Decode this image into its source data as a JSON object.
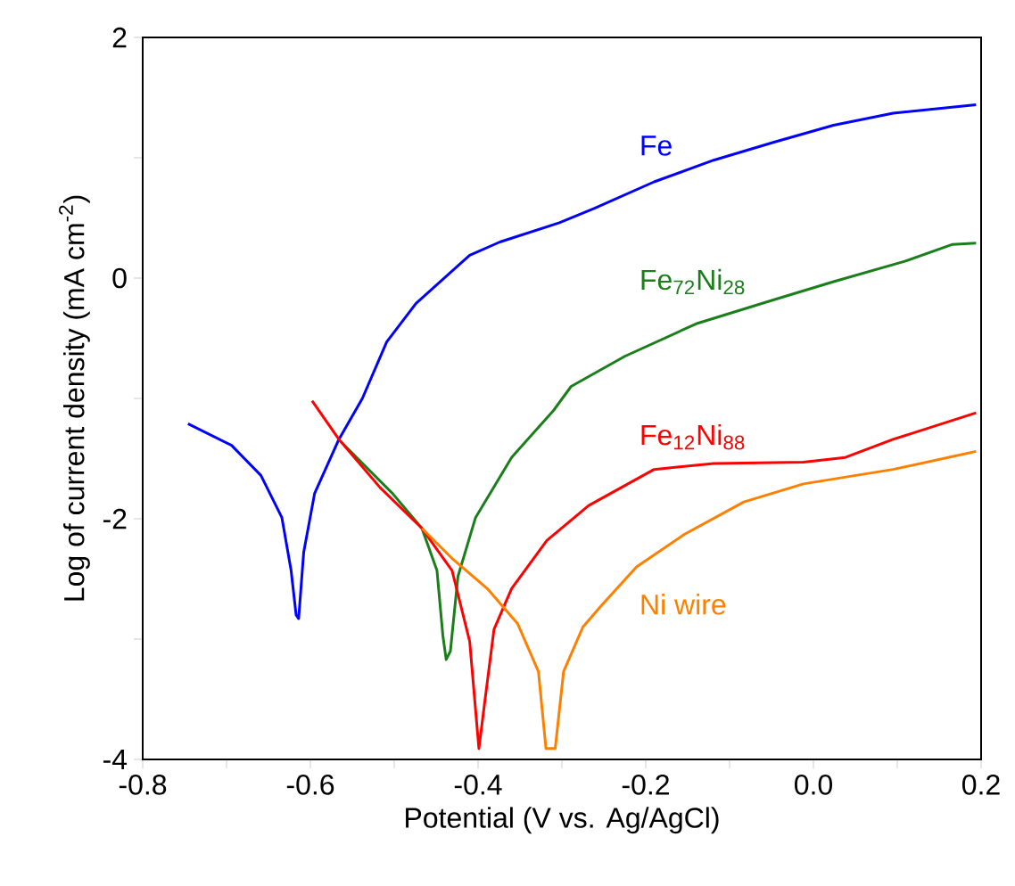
{
  "chart_data": {
    "type": "line",
    "xlabel": "Potential  (V vs. Ag/AgCl)",
    "ylabel": "Log of current density (mA cm$^{-2}$)",
    "xlim": [
      -0.8,
      0.2
    ],
    "ylim": [
      -4,
      2
    ],
    "xticks": [
      {
        "value": -0.8,
        "label": "-0.8"
      },
      {
        "value": -0.7,
        "label": null
      },
      {
        "value": -0.6,
        "label": "-0.6"
      },
      {
        "value": -0.5,
        "label": null
      },
      {
        "value": -0.4,
        "label": "-0.4"
      },
      {
        "value": -0.3,
        "label": null
      },
      {
        "value": -0.2,
        "label": "-0.2"
      },
      {
        "value": -0.1,
        "label": null
      },
      {
        "value": 0.0,
        "label": "0.0"
      },
      {
        "value": 0.1,
        "label": null
      },
      {
        "value": 0.2,
        "label": "0.2"
      }
    ],
    "yticks": [
      {
        "value": -4,
        "label": "-4"
      },
      {
        "value": -3,
        "label": null
      },
      {
        "value": -2,
        "label": "-2"
      },
      {
        "value": -1,
        "label": null
      },
      {
        "value": 0,
        "label": "0"
      },
      {
        "value": 1,
        "label": null
      },
      {
        "value": 2,
        "label": "2"
      }
    ],
    "grid": false,
    "legend": false,
    "marker": "none",
    "line_style": "solid",
    "series": [
      {
        "name": "Fe",
        "color": "#0000ff",
        "x": [
          -0.746,
          -0.694,
          -0.659,
          -0.634,
          -0.623,
          -0.617,
          -0.614,
          -0.608,
          -0.595,
          -0.566,
          -0.538,
          -0.509,
          -0.474,
          -0.41,
          -0.374,
          -0.303,
          -0.261,
          -0.19,
          -0.119,
          -0.047,
          0.024,
          0.095,
          0.194
        ],
        "values": [
          -1.21,
          -1.39,
          -1.64,
          -1.99,
          -2.43,
          -2.8,
          -2.83,
          -2.28,
          -1.79,
          -1.34,
          -1.0,
          -0.53,
          -0.21,
          0.19,
          0.3,
          0.46,
          0.58,
          0.8,
          0.98,
          1.13,
          1.27,
          1.37,
          1.44
        ]
      },
      {
        "name": "Fe$_{72}$Ni$_{28}$",
        "color": "#1a7f1a",
        "x": [
          -0.565,
          -0.502,
          -0.467,
          -0.449,
          -0.442,
          -0.438,
          -0.433,
          -0.424,
          -0.403,
          -0.36,
          -0.31,
          -0.289,
          -0.225,
          -0.14,
          -0.047,
          0.024,
          0.109,
          0.166,
          0.194
        ],
        "values": [
          -1.35,
          -1.79,
          -2.08,
          -2.43,
          -2.97,
          -3.17,
          -3.1,
          -2.48,
          -1.99,
          -1.49,
          -1.1,
          -0.9,
          -0.65,
          -0.38,
          -0.18,
          -0.03,
          0.14,
          0.28,
          0.29
        ]
      },
      {
        "name": "Fe$_{12}$Ni$_{88}$",
        "color": "#ff0000",
        "x": [
          -0.598,
          -0.566,
          -0.517,
          -0.467,
          -0.431,
          -0.41,
          -0.399,
          -0.392,
          -0.381,
          -0.36,
          -0.318,
          -0.268,
          -0.19,
          -0.119,
          -0.012,
          0.038,
          0.095,
          0.194
        ],
        "values": [
          -1.02,
          -1.34,
          -1.74,
          -2.08,
          -2.43,
          -3.02,
          -3.91,
          -3.52,
          -2.92,
          -2.58,
          -2.18,
          -1.89,
          -1.59,
          -1.54,
          -1.53,
          -1.49,
          -1.34,
          -1.12
        ]
      },
      {
        "name": "Ni wire",
        "color": "#ff8000",
        "x": [
          -0.467,
          -0.431,
          -0.389,
          -0.353,
          -0.328,
          -0.319,
          -0.308,
          -0.298,
          -0.275,
          -0.254,
          -0.211,
          -0.154,
          -0.083,
          -0.012,
          0.095,
          0.194
        ],
        "values": [
          -2.08,
          -2.33,
          -2.58,
          -2.87,
          -3.27,
          -3.91,
          -3.91,
          -3.27,
          -2.9,
          -2.73,
          -2.4,
          -2.13,
          -1.86,
          -1.71,
          -1.59,
          -1.44
        ]
      }
    ]
  }
}
